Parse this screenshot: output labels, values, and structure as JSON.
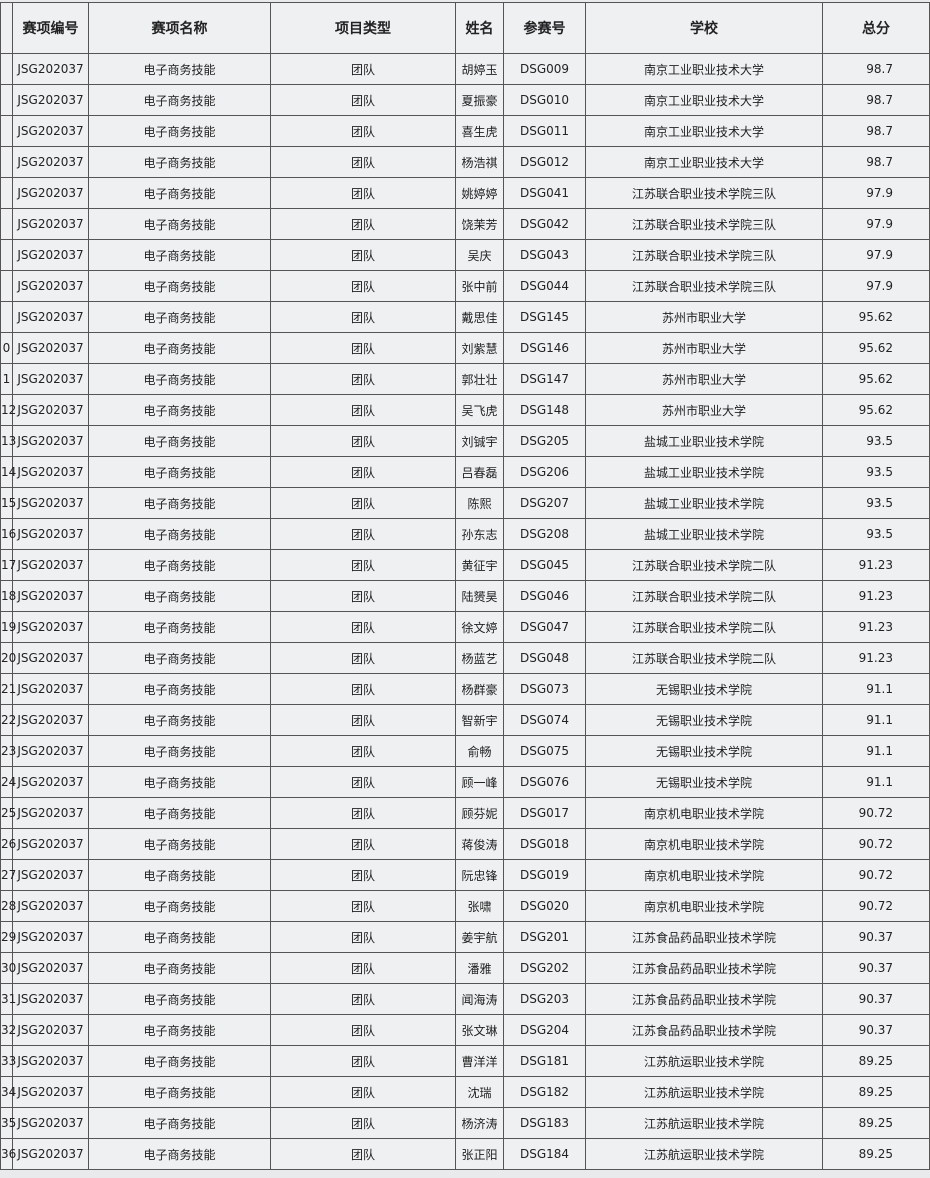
{
  "table": {
    "header": [
      "赛项编号",
      "赛项名称",
      "项目类型",
      "姓名",
      "参赛号",
      "学校",
      "总分"
    ],
    "rows": [
      [
        null,
        "JSG202037",
        "电子商务技能",
        "团队",
        "胡婷玉",
        "DSG009",
        "南京工业职业技术大学",
        "98.7"
      ],
      [
        null,
        "JSG202037",
        "电子商务技能",
        "团队",
        "夏振豪",
        "DSG010",
        "南京工业职业技术大学",
        "98.7"
      ],
      [
        null,
        "JSG202037",
        "电子商务技能",
        "团队",
        "喜生虎",
        "DSG011",
        "南京工业职业技术大学",
        "98.7"
      ],
      [
        null,
        "JSG202037",
        "电子商务技能",
        "团队",
        "杨浩祺",
        "DSG012",
        "南京工业职业技术大学",
        "98.7"
      ],
      [
        null,
        "JSG202037",
        "电子商务技能",
        "团队",
        "姚婷婷",
        "DSG041",
        "江苏联合职业技术学院三队",
        "97.9"
      ],
      [
        null,
        "JSG202037",
        "电子商务技能",
        "团队",
        "饶茉芳",
        "DSG042",
        "江苏联合职业技术学院三队",
        "97.9"
      ],
      [
        null,
        "JSG202037",
        "电子商务技能",
        "团队",
        "吴庆",
        "DSG043",
        "江苏联合职业技术学院三队",
        "97.9"
      ],
      [
        null,
        "JSG202037",
        "电子商务技能",
        "团队",
        "张中前",
        "DSG044",
        "江苏联合职业技术学院三队",
        "97.9"
      ],
      [
        null,
        "JSG202037",
        "电子商务技能",
        "团队",
        "戴思佳",
        "DSG145",
        "苏州市职业大学",
        "95.62"
      ],
      [
        "0",
        "JSG202037",
        "电子商务技能",
        "团队",
        "刘紫慧",
        "DSG146",
        "苏州市职业大学",
        "95.62"
      ],
      [
        "1",
        "JSG202037",
        "电子商务技能",
        "团队",
        "郭壮壮",
        "DSG147",
        "苏州市职业大学",
        "95.62"
      ],
      [
        "12",
        "JSG202037",
        "电子商务技能",
        "团队",
        "吴飞虎",
        "DSG148",
        "苏州市职业大学",
        "95.62"
      ],
      [
        "13",
        "JSG202037",
        "电子商务技能",
        "团队",
        "刘铖宇",
        "DSG205",
        "盐城工业职业技术学院",
        "93.5"
      ],
      [
        "14",
        "JSG202037",
        "电子商务技能",
        "团队",
        "吕春磊",
        "DSG206",
        "盐城工业职业技术学院",
        "93.5"
      ],
      [
        "15",
        "JSG202037",
        "电子商务技能",
        "团队",
        "陈熙",
        "DSG207",
        "盐城工业职业技术学院",
        "93.5"
      ],
      [
        "16",
        "JSG202037",
        "电子商务技能",
        "团队",
        "孙东志",
        "DSG208",
        "盐城工业职业技术学院",
        "93.5"
      ],
      [
        "17",
        "JSG202037",
        "电子商务技能",
        "团队",
        "黄征宇",
        "DSG045",
        "江苏联合职业技术学院二队",
        "91.23"
      ],
      [
        "18",
        "JSG202037",
        "电子商务技能",
        "团队",
        "陆赟昊",
        "DSG046",
        "江苏联合职业技术学院二队",
        "91.23"
      ],
      [
        "19",
        "JSG202037",
        "电子商务技能",
        "团队",
        "徐文婷",
        "DSG047",
        "江苏联合职业技术学院二队",
        "91.23"
      ],
      [
        "20",
        "JSG202037",
        "电子商务技能",
        "团队",
        "杨蓝艺",
        "DSG048",
        "江苏联合职业技术学院二队",
        "91.23"
      ],
      [
        "21",
        "JSG202037",
        "电子商务技能",
        "团队",
        "杨群豪",
        "DSG073",
        "无锡职业技术学院",
        "91.1"
      ],
      [
        "22",
        "JSG202037",
        "电子商务技能",
        "团队",
        "智新宇",
        "DSG074",
        "无锡职业技术学院",
        "91.1"
      ],
      [
        "23",
        "JSG202037",
        "电子商务技能",
        "团队",
        "俞畅",
        "DSG075",
        "无锡职业技术学院",
        "91.1"
      ],
      [
        "24",
        "JSG202037",
        "电子商务技能",
        "团队",
        "顾一峰",
        "DSG076",
        "无锡职业技术学院",
        "91.1"
      ],
      [
        "25",
        "JSG202037",
        "电子商务技能",
        "团队",
        "顾芬妮",
        "DSG017",
        "南京机电职业技术学院",
        "90.72"
      ],
      [
        "26",
        "JSG202037",
        "电子商务技能",
        "团队",
        "蒋俊涛",
        "DSG018",
        "南京机电职业技术学院",
        "90.72"
      ],
      [
        "27",
        "JSG202037",
        "电子商务技能",
        "团队",
        "阮忠锋",
        "DSG019",
        "南京机电职业技术学院",
        "90.72"
      ],
      [
        "28",
        "JSG202037",
        "电子商务技能",
        "团队",
        "张啸",
        "DSG020",
        "南京机电职业技术学院",
        "90.72"
      ],
      [
        "29",
        "JSG202037",
        "电子商务技能",
        "团队",
        "姜宇航",
        "DSG201",
        "江苏食品药品职业技术学院",
        "90.37"
      ],
      [
        "30",
        "JSG202037",
        "电子商务技能",
        "团队",
        "潘雅",
        "DSG202",
        "江苏食品药品职业技术学院",
        "90.37"
      ],
      [
        "31",
        "JSG202037",
        "电子商务技能",
        "团队",
        "闻海涛",
        "DSG203",
        "江苏食品药品职业技术学院",
        "90.37"
      ],
      [
        "32",
        "JSG202037",
        "电子商务技能",
        "团队",
        "张文琳",
        "DSG204",
        "江苏食品药品职业技术学院",
        "90.37"
      ],
      [
        "33",
        "JSG202037",
        "电子商务技能",
        "团队",
        "曹洋洋",
        "DSG181",
        "江苏航运职业技术学院",
        "89.25"
      ],
      [
        "34",
        "JSG202037",
        "电子商务技能",
        "团队",
        "沈瑞",
        "DSG182",
        "江苏航运职业技术学院",
        "89.25"
      ],
      [
        "35",
        "JSG202037",
        "电子商务技能",
        "团队",
        "杨济涛",
        "DSG183",
        "江苏航运职业技术学院",
        "89.25"
      ],
      [
        "36",
        "JSG202037",
        "电子商务技能",
        "团队",
        "张正阳",
        "DSG184",
        "江苏航运职业技术学院",
        "89.25"
      ]
    ]
  }
}
